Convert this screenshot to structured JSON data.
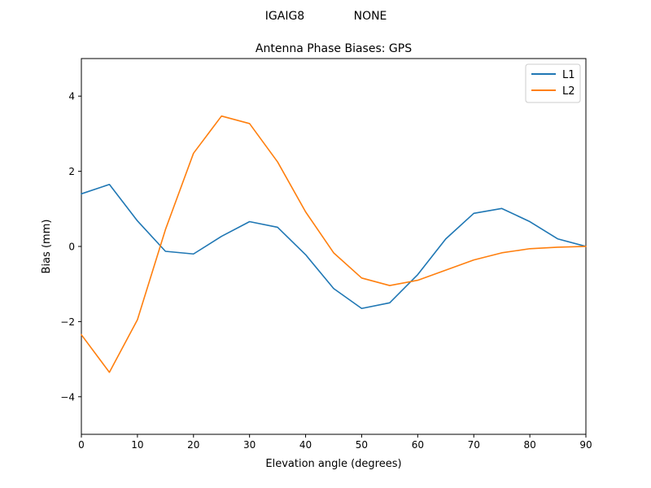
{
  "figure": {
    "suptitle_left": "IGAIG8",
    "suptitle_right": "NONE"
  },
  "chart_data": {
    "type": "line",
    "title": "Antenna Phase Biases: GPS",
    "xlabel": "Elevation angle (degrees)",
    "ylabel": "Bias (mm)",
    "xlim": [
      0,
      90
    ],
    "ylim": [
      -5,
      5
    ],
    "xticks": [
      0,
      10,
      20,
      30,
      40,
      50,
      60,
      70,
      80,
      90
    ],
    "yticks": [
      -4,
      -2,
      0,
      2,
      4
    ],
    "ytick_labels": [
      "−4",
      "−2",
      "0",
      "2",
      "4"
    ],
    "grid": false,
    "legend_position": "top-right",
    "x": [
      0,
      5,
      10,
      15,
      20,
      25,
      30,
      35,
      40,
      45,
      50,
      55,
      60,
      65,
      70,
      75,
      80,
      85,
      90
    ],
    "series": [
      {
        "name": "L1",
        "color": "#1f77b4",
        "values": [
          1.4,
          1.65,
          0.68,
          -0.13,
          -0.2,
          0.27,
          0.66,
          0.51,
          -0.22,
          -1.12,
          -1.65,
          -1.5,
          -0.75,
          0.2,
          0.88,
          1.01,
          0.66,
          0.2,
          0.0
        ]
      },
      {
        "name": "L2",
        "color": "#ff7f0e",
        "values": [
          -2.35,
          -3.35,
          -1.95,
          0.45,
          2.48,
          3.47,
          3.27,
          2.25,
          0.92,
          -0.17,
          -0.84,
          -1.04,
          -0.9,
          -0.63,
          -0.36,
          -0.17,
          -0.06,
          -0.02,
          0.0
        ]
      }
    ]
  }
}
